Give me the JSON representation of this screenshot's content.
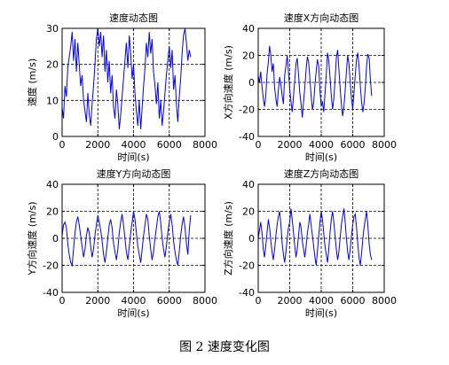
{
  "figure_caption": "图 2  速度变化图",
  "chart_data": [
    {
      "type": "line",
      "title": "速度动态图",
      "xlabel": "时间(s)",
      "ylabel": "速度 (m/s)",
      "xlim": [
        0,
        8000
      ],
      "ylim": [
        0,
        30
      ],
      "xticks": [
        "0",
        "2000",
        "4000",
        "6000",
        "8000"
      ],
      "yticks": [
        "0",
        "10",
        "20",
        "30"
      ],
      "grid": "dashed",
      "line_color": "#0000ff",
      "series": [
        {
          "x": [
            0,
            80,
            160,
            240,
            320,
            400,
            480,
            560,
            640,
            720,
            800,
            880,
            960,
            1040,
            1120,
            1200,
            1280,
            1360,
            1440,
            1520,
            1600,
            1680,
            1760,
            1840,
            1920,
            2000,
            2080,
            2160,
            2240,
            2320,
            2400,
            2480,
            2560,
            2640,
            2720,
            2800,
            2880,
            2960,
            3040,
            3120,
            3200,
            3280,
            3360,
            3440,
            3520,
            3600,
            3680,
            3760,
            3840,
            3920,
            4000,
            4080,
            4160,
            4240,
            4320,
            4400,
            4480,
            4560,
            4640,
            4720,
            4800,
            4880,
            4960,
            5040,
            5120,
            5200,
            5280,
            5360,
            5440,
            5520,
            5600,
            5680,
            5760,
            5840,
            5920,
            6000,
            6080,
            6160,
            6240,
            6320,
            6400,
            6480,
            6560,
            6640,
            6720,
            6800,
            6880,
            6960,
            7040,
            7120,
            7200
          ],
          "y": [
            8,
            5,
            14,
            11,
            19,
            22,
            25,
            29,
            21,
            27,
            18,
            26,
            20,
            14,
            17,
            10,
            7,
            4,
            12,
            6,
            3,
            9,
            14,
            20,
            27,
            30,
            25,
            29,
            22,
            28,
            18,
            24,
            15,
            21,
            12,
            17,
            8,
            5,
            13,
            9,
            2,
            6,
            11,
            16,
            21,
            26,
            19,
            28,
            23,
            16,
            20,
            12,
            7,
            3,
            10,
            2,
            8,
            14,
            19,
            26,
            22,
            29,
            23,
            27,
            18,
            14,
            9,
            15,
            5,
            10,
            3,
            7,
            12,
            17,
            21,
            25,
            19,
            24,
            13,
            17,
            9,
            4,
            11,
            16,
            23,
            28,
            30,
            26,
            21,
            24,
            22
          ]
        }
      ]
    },
    {
      "type": "line",
      "title": "速度X方向动态图",
      "xlabel": "时间(s)",
      "ylabel": "X方向速度 (m/s)",
      "xlim": [
        0,
        8000
      ],
      "ylim": [
        -40,
        40
      ],
      "xticks": [
        "0",
        "2000",
        "4000",
        "6000",
        "8000"
      ],
      "yticks": [
        "-40",
        "-20",
        "0",
        "20",
        "40"
      ],
      "grid": "dashed",
      "line_color": "#0000ff",
      "series": [
        {
          "x": [
            0,
            80,
            160,
            240,
            320,
            400,
            480,
            560,
            640,
            720,
            800,
            880,
            960,
            1040,
            1120,
            1200,
            1280,
            1360,
            1440,
            1520,
            1600,
            1680,
            1760,
            1840,
            1920,
            2000,
            2080,
            2160,
            2240,
            2320,
            2400,
            2480,
            2560,
            2640,
            2720,
            2800,
            2880,
            2960,
            3040,
            3120,
            3200,
            3280,
            3360,
            3440,
            3520,
            3600,
            3680,
            3760,
            3840,
            3920,
            4000,
            4080,
            4160,
            4240,
            4320,
            4400,
            4480,
            4560,
            4640,
            4720,
            4800,
            4880,
            4960,
            5040,
            5120,
            5200,
            5280,
            5360,
            5440,
            5520,
            5600,
            5680,
            5760,
            5840,
            5920,
            6000,
            6080,
            6160,
            6240,
            6320,
            6400,
            6480,
            6560,
            6640,
            6720,
            6800,
            6880,
            6960,
            7040,
            7120,
            7200
          ],
          "y": [
            5,
            0,
            8,
            -3,
            -12,
            -18,
            -10,
            6,
            15,
            27,
            20,
            8,
            14,
            -4,
            -12,
            -18,
            -6,
            4,
            -2,
            -10,
            -16,
            5,
            12,
            20,
            8,
            -5,
            -14,
            -22,
            -10,
            2,
            14,
            18,
            6,
            -8,
            -16,
            -26,
            -14,
            -4,
            10,
            19,
            15,
            3,
            -10,
            -20,
            -15,
            -2,
            8,
            17,
            12,
            -6,
            -18,
            -14,
            -22,
            -8,
            6,
            22,
            16,
            4,
            -10,
            -20,
            -12,
            2,
            18,
            24,
            10,
            -4,
            -16,
            -25,
            -18,
            -6,
            8,
            20,
            14,
            0,
            -12,
            -20,
            -8,
            5,
            17,
            22,
            12,
            -2,
            -14,
            -22,
            -15,
            -4,
            12,
            21,
            18,
            2,
            -10
          ]
        }
      ]
    },
    {
      "type": "line",
      "title": "速度Y方向动态图",
      "xlabel": "时间(s)",
      "ylabel": "Y方向速度 (m/s)",
      "xlim": [
        0,
        8000
      ],
      "ylim": [
        -40,
        40
      ],
      "xticks": [
        "0",
        "2000",
        "4000",
        "6000",
        "8000"
      ],
      "yticks": [
        "-40",
        "-20",
        "0",
        "20",
        "40"
      ],
      "grid": "dashed",
      "line_color": "#0000ff",
      "series": [
        {
          "x": [
            0,
            80,
            160,
            240,
            320,
            400,
            480,
            560,
            640,
            720,
            800,
            880,
            960,
            1040,
            1120,
            1200,
            1280,
            1360,
            1440,
            1520,
            1600,
            1680,
            1760,
            1840,
            1920,
            2000,
            2080,
            2160,
            2240,
            2320,
            2400,
            2480,
            2560,
            2640,
            2720,
            2800,
            2880,
            2960,
            3040,
            3120,
            3200,
            3280,
            3360,
            3440,
            3520,
            3600,
            3680,
            3760,
            3840,
            3920,
            4000,
            4080,
            4160,
            4240,
            4320,
            4400,
            4480,
            4560,
            4640,
            4720,
            4800,
            4880,
            4960,
            5040,
            5120,
            5200,
            5280,
            5360,
            5440,
            5520,
            5600,
            5680,
            5760,
            5840,
            5920,
            6000,
            6080,
            6160,
            6240,
            6320,
            6400,
            6480,
            6560,
            6640,
            6720,
            6800,
            6880,
            6960,
            7040,
            7120,
            7200
          ],
          "y": [
            2,
            10,
            12,
            8,
            -4,
            -12,
            -18,
            -20,
            -8,
            4,
            12,
            16,
            10,
            2,
            -6,
            -14,
            -8,
            2,
            8,
            4,
            -6,
            -14,
            -8,
            2,
            10,
            17,
            12,
            6,
            -2,
            -12,
            -18,
            -10,
            0,
            10,
            14,
            8,
            -4,
            -10,
            -16,
            -8,
            4,
            12,
            18,
            10,
            0,
            -10,
            -16,
            -6,
            4,
            12,
            20,
            14,
            4,
            -6,
            -12,
            -18,
            -8,
            2,
            10,
            18,
            14,
            2,
            -8,
            -16,
            -10,
            0,
            8,
            16,
            20,
            12,
            0,
            -8,
            -14,
            -6,
            4,
            12,
            18,
            10,
            -2,
            -10,
            -16,
            -20,
            -10,
            2,
            10,
            16,
            8,
            -4,
            -12,
            6,
            17
          ]
        }
      ]
    },
    {
      "type": "line",
      "title": "速度Z方向动态图",
      "xlabel": "时间(s)",
      "ylabel": "Z方向速度 (m/s)",
      "xlim": [
        0,
        8000
      ],
      "ylim": [
        -40,
        40
      ],
      "xticks": [
        "0",
        "2000",
        "4000",
        "6000",
        "8000"
      ],
      "yticks": [
        "-40",
        "-20",
        "0",
        "20",
        "40"
      ],
      "grid": "dashed",
      "line_color": "#0000ff",
      "series": [
        {
          "x": [
            0,
            80,
            160,
            240,
            320,
            400,
            480,
            560,
            640,
            720,
            800,
            880,
            960,
            1040,
            1120,
            1200,
            1280,
            1360,
            1440,
            1520,
            1600,
            1680,
            1760,
            1840,
            1920,
            2000,
            2080,
            2160,
            2240,
            2320,
            2400,
            2480,
            2560,
            2640,
            2720,
            2800,
            2880,
            2960,
            3040,
            3120,
            3200,
            3280,
            3360,
            3440,
            3520,
            3600,
            3680,
            3760,
            3840,
            3920,
            4000,
            4080,
            4160,
            4240,
            4320,
            4400,
            4480,
            4560,
            4640,
            4720,
            4800,
            4880,
            4960,
            5040,
            5120,
            5200,
            5280,
            5360,
            5440,
            5520,
            5600,
            5680,
            5760,
            5840,
            5920,
            6000,
            6080,
            6160,
            6240,
            6320,
            6400,
            6480,
            6560,
            6640,
            6720,
            6800,
            6880,
            6960,
            7040,
            7120,
            7200
          ],
          "y": [
            0,
            6,
            12,
            4,
            -8,
            -14,
            -6,
            4,
            14,
            8,
            -2,
            -10,
            -16,
            -8,
            2,
            10,
            16,
            20,
            10,
            -4,
            -12,
            -18,
            -10,
            0,
            8,
            12,
            22,
            14,
            4,
            -6,
            -14,
            -8,
            2,
            12,
            8,
            -2,
            -8,
            -14,
            -6,
            4,
            10,
            18,
            10,
            2,
            -6,
            -14,
            -20,
            -10,
            2,
            12,
            20,
            14,
            4,
            -6,
            -12,
            -18,
            -8,
            4,
            14,
            20,
            12,
            2,
            -8,
            -16,
            -10,
            0,
            10,
            16,
            22,
            12,
            0,
            -10,
            -16,
            -8,
            2,
            10,
            16,
            18,
            8,
            -4,
            -14,
            -20,
            -12,
            0,
            8,
            14,
            20,
            10,
            -4,
            -12,
            -16
          ]
        }
      ]
    }
  ]
}
